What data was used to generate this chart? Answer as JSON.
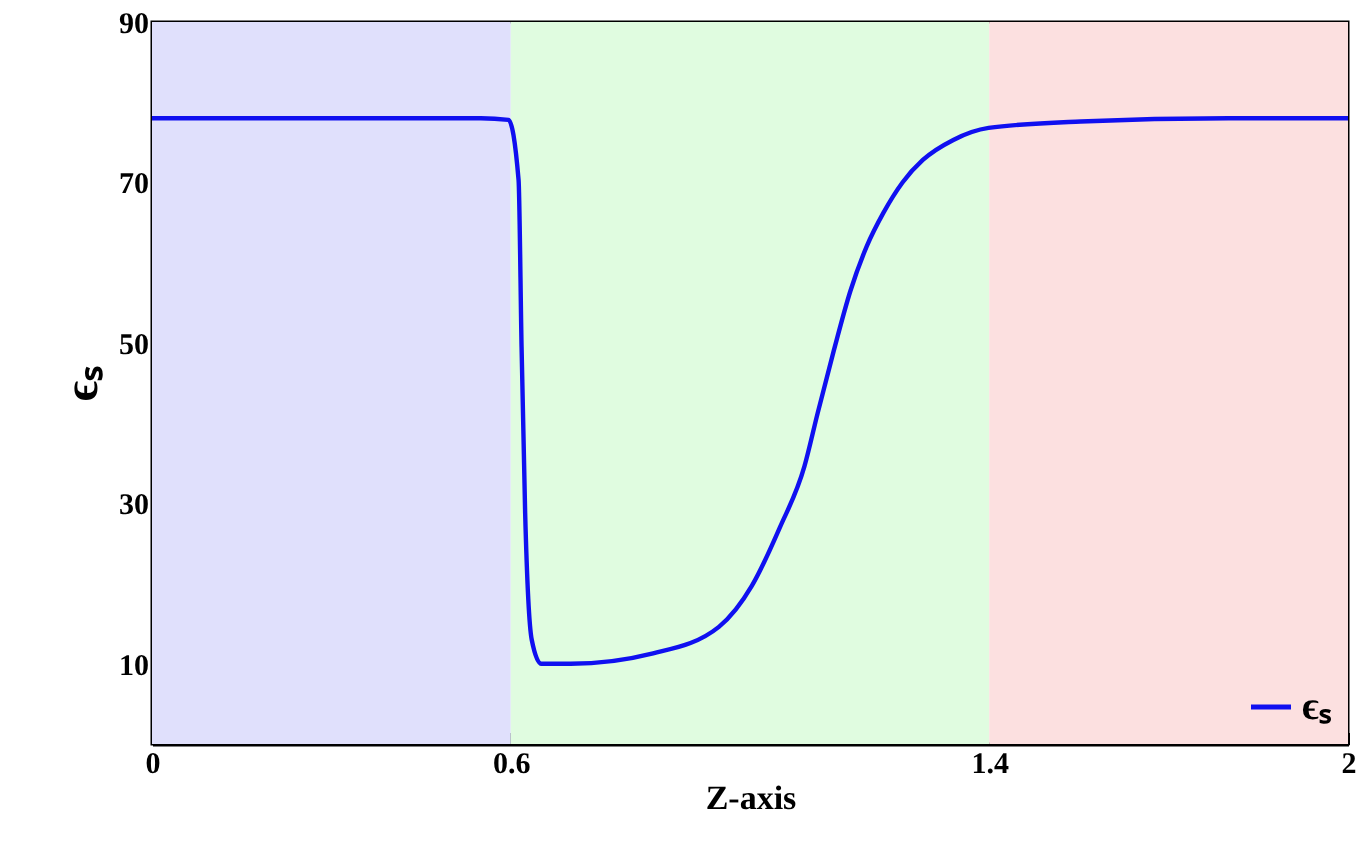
{
  "chart_data": {
    "type": "line",
    "xlabel": "Z-axis",
    "ylabel": "ϵₛ",
    "x": [
      0,
      0.3,
      0.55,
      0.596,
      0.613,
      0.618,
      0.624,
      0.635,
      0.651,
      0.7,
      0.838,
      0.948,
      1.003,
      1.05,
      1.091,
      1.113,
      1.14,
      1.168,
      1.195,
      1.223,
      1.255,
      1.289,
      1.34,
      1.399,
      1.553,
      1.8,
      2
    ],
    "series": [
      {
        "name": "ϵₛ",
        "color": "#1010f0",
        "values": [
          78,
          78,
          78,
          77.8,
          70.3,
          49.5,
          28.8,
          13,
          10,
          10,
          11.3,
          14.6,
          19.7,
          27,
          34.6,
          41.2,
          49,
          56.5,
          62,
          66.2,
          70,
          72.8,
          75.3,
          76.8,
          77.6,
          78,
          78
        ]
      }
    ],
    "xlim": [
      0,
      2
    ],
    "xticks": [
      0,
      0.6,
      1.4,
      2
    ],
    "ylim": [
      0,
      90
    ],
    "yticks": [
      10,
      30,
      50,
      70,
      90
    ],
    "bands": [
      {
        "axis": "x",
        "from": 0,
        "to": 0.6,
        "color": "#e0e0fc"
      },
      {
        "axis": "x",
        "from": 0.6,
        "to": 1.4,
        "color": "#e0fce0"
      },
      {
        "axis": "x",
        "from": 1.4,
        "to": 2,
        "color": "#fce0e0"
      }
    ],
    "grid": false,
    "legend": "bottom right",
    "marker": "none",
    "line_style": "solid"
  }
}
